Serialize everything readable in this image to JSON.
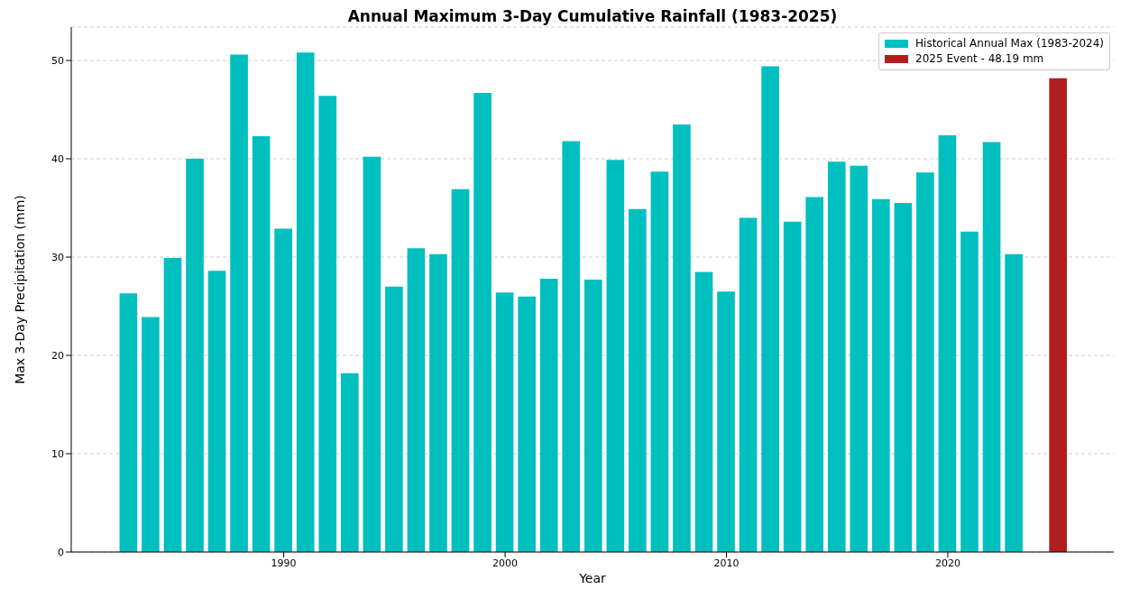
{
  "chart_data": {
    "type": "bar",
    "title": "Annual Maximum 3-Day Cumulative Rainfall (1983-2025)",
    "xlabel": "Year",
    "ylabel": "Max 3-Day Precipitation (mm)",
    "xlim": [
      1980.4,
      2027.5
    ],
    "xticks": [
      1990,
      2000,
      2010,
      2020
    ],
    "ylim": [
      0,
      53.4
    ],
    "yticks": [
      0,
      10,
      20,
      30,
      40,
      50
    ],
    "grid": "y",
    "legend": "top right",
    "series": [
      {
        "name": "Historical Annual Max (1983-2024)",
        "color": "#00bfbf",
        "x": [
          1983,
          1984,
          1985,
          1986,
          1987,
          1988,
          1989,
          1990,
          1991,
          1992,
          1993,
          1994,
          1995,
          1996,
          1997,
          1998,
          1999,
          2000,
          2001,
          2002,
          2003,
          2004,
          2005,
          2006,
          2007,
          2008,
          2009,
          2010,
          2011,
          2012,
          2013,
          2014,
          2015,
          2016,
          2017,
          2018,
          2019,
          2020,
          2021,
          2022,
          2023
        ],
        "values": [
          26.3,
          23.9,
          29.9,
          40.0,
          28.6,
          50.6,
          42.3,
          32.9,
          50.8,
          46.4,
          18.2,
          40.2,
          27.0,
          30.9,
          30.3,
          36.9,
          46.7,
          26.4,
          26.0,
          27.8,
          41.8,
          27.7,
          39.9,
          34.9,
          38.7,
          43.5,
          28.5,
          26.5,
          34.0,
          49.4,
          33.6,
          36.1,
          39.7,
          39.3,
          35.9,
          35.5,
          38.6,
          42.4,
          32.6,
          41.7,
          30.3
        ]
      },
      {
        "name": "2025 Event - 48.19 mm",
        "color": "#b01e1e",
        "x": [
          2025
        ],
        "values": [
          48.19
        ]
      }
    ]
  }
}
